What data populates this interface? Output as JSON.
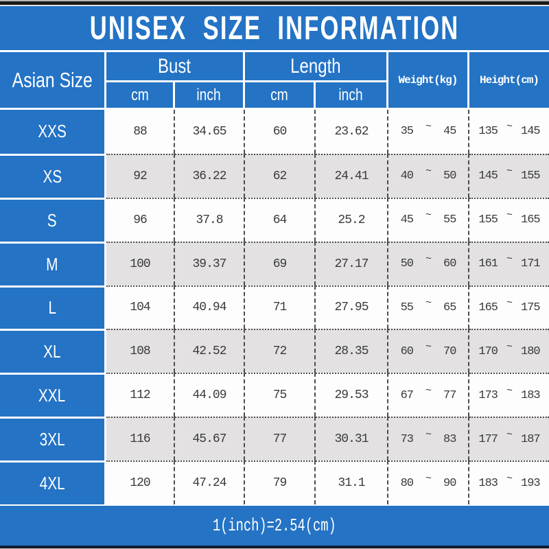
{
  "ui": {
    "tilde": "~"
  },
  "colors": {
    "accent_blue": "#2473c5",
    "row_alt_gray": "#e3e1e2",
    "row_white": "#fdfdfd",
    "text_dark": "#3a3a3a",
    "text_on_blue": "#ffffff"
  },
  "header": {
    "size_col": "Asian Size",
    "bust": "Bust",
    "length": "Length",
    "weight": "Weight(kg)",
    "height": "Height(cm)",
    "cm": "cm",
    "inch": "inch"
  },
  "chart_data": {
    "type": "table",
    "title": "UNISEX SIZE INFORMATION",
    "footnote": "1(inch)=2.54(cm)",
    "columns": [
      "Asian Size",
      "Bust cm",
      "Bust inch",
      "Length cm",
      "Length inch",
      "Weight(kg)",
      "Height(cm)"
    ],
    "rows": [
      {
        "size": "XXS",
        "bust_cm": "88",
        "bust_inch": "34.65",
        "length_cm": "60",
        "length_inch": "23.62",
        "weight_min": "35",
        "weight_max": "45",
        "height_min": "135",
        "height_max": "145"
      },
      {
        "size": "XS",
        "bust_cm": "92",
        "bust_inch": "36.22",
        "length_cm": "62",
        "length_inch": "24.41",
        "weight_min": "40",
        "weight_max": "50",
        "height_min": "145",
        "height_max": "155"
      },
      {
        "size": "S",
        "bust_cm": "96",
        "bust_inch": "37.8",
        "length_cm": "64",
        "length_inch": "25.2",
        "weight_min": "45",
        "weight_max": "55",
        "height_min": "155",
        "height_max": "165"
      },
      {
        "size": "M",
        "bust_cm": "100",
        "bust_inch": "39.37",
        "length_cm": "69",
        "length_inch": "27.17",
        "weight_min": "50",
        "weight_max": "60",
        "height_min": "161",
        "height_max": "171"
      },
      {
        "size": "L",
        "bust_cm": "104",
        "bust_inch": "40.94",
        "length_cm": "71",
        "length_inch": "27.95",
        "weight_min": "55",
        "weight_max": "65",
        "height_min": "165",
        "height_max": "175"
      },
      {
        "size": "XL",
        "bust_cm": "108",
        "bust_inch": "42.52",
        "length_cm": "72",
        "length_inch": "28.35",
        "weight_min": "60",
        "weight_max": "70",
        "height_min": "170",
        "height_max": "180"
      },
      {
        "size": "XXL",
        "bust_cm": "112",
        "bust_inch": "44.09",
        "length_cm": "75",
        "length_inch": "29.53",
        "weight_min": "67",
        "weight_max": "77",
        "height_min": "173",
        "height_max": "183"
      },
      {
        "size": "3XL",
        "bust_cm": "116",
        "bust_inch": "45.67",
        "length_cm": "77",
        "length_inch": "30.31",
        "weight_min": "73",
        "weight_max": "83",
        "height_min": "177",
        "height_max": "187"
      },
      {
        "size": "4XL",
        "bust_cm": "120",
        "bust_inch": "47.24",
        "length_cm": "79",
        "length_inch": "31.1",
        "weight_min": "80",
        "weight_max": "90",
        "height_min": "183",
        "height_max": "193"
      }
    ]
  }
}
